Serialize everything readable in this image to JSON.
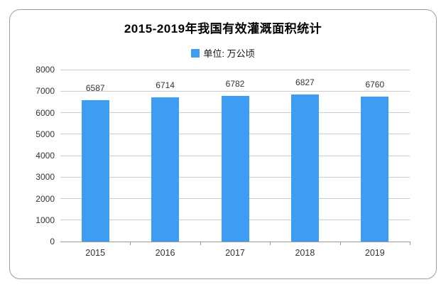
{
  "title": "2015-2019年我国有效灌溉面积统计",
  "legend": {
    "label": "单位: 万公顷",
    "swatch_color": "#3e9df2"
  },
  "chart_data": {
    "type": "bar",
    "title": "2015-2019年我国有效灌溉面积统计",
    "unit_label": "单位: 万公顷",
    "categories": [
      "2015",
      "2016",
      "2017",
      "2018",
      "2019"
    ],
    "values": [
      6587,
      6714,
      6782,
      6827,
      6760
    ],
    "value_labels": [
      "6587",
      "6714",
      "6782",
      "6827",
      "6760"
    ],
    "ylim": [
      0,
      8000
    ],
    "y_ticks": [
      0,
      1000,
      2000,
      3000,
      4000,
      5000,
      6000,
      7000,
      8000
    ],
    "grid": true,
    "legend_position": "top",
    "bar_color": "#3e9df2",
    "gridline_color": "#cccccc",
    "axis_line_color": "#999999"
  }
}
